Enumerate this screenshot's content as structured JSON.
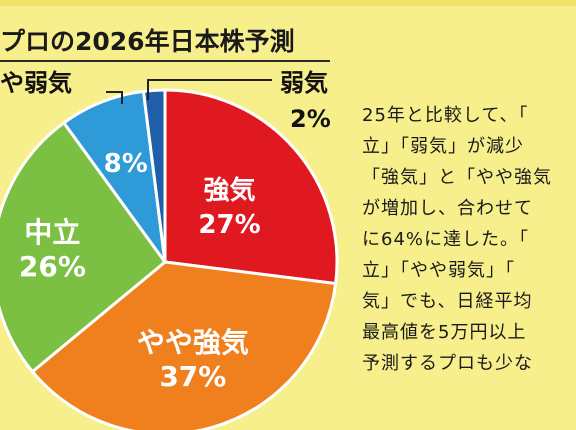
{
  "title": "プロの2026年日本株予測",
  "colors": {
    "background": "#f7ef8c",
    "strong": "#e01820",
    "somewhat_strong": "#f07f1e",
    "neutral": "#7cc043",
    "somewhat_weak": "#2e9ad8",
    "weak": "#1f5ea8"
  },
  "chart_data": {
    "type": "pie",
    "title": "プロの2026年日本株予測",
    "slices": [
      {
        "label": "強気",
        "value": 27,
        "value_label": "27%"
      },
      {
        "label": "やや強気",
        "value": 37,
        "value_label": "37%"
      },
      {
        "label": "中立",
        "value": 26,
        "value_label": "26%"
      },
      {
        "label": "やや弱気",
        "value": 8,
        "value_label": "8%"
      },
      {
        "label": "弱気",
        "value": 2,
        "value_label": "2%"
      }
    ]
  },
  "description": [
    "25年と比較して、「",
    "立」「弱気」が減少",
    "「強気」と「やや強気",
    "が増加し、合わせて",
    "に64%に達した。「",
    "立」「やや弱気」「",
    "気」でも、日経平均",
    "最高値を5万円以上",
    "予測するプロも少な"
  ]
}
